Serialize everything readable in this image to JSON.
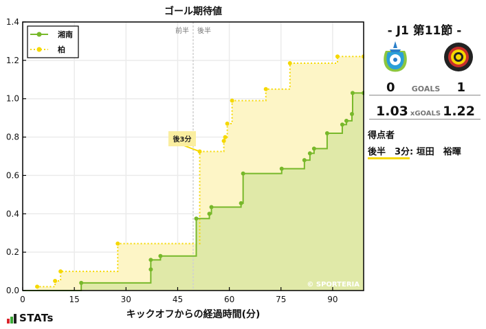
{
  "chart": {
    "title": "ゴール期待値",
    "xlabel": "キックオフからの経過時間(分)",
    "half_labels": {
      "first": "前半",
      "second": "後半"
    },
    "annotation": "後3分",
    "watermark": "© SPORTERIA",
    "legend": [
      {
        "name": "湘南",
        "color": "#77b82a",
        "style": "solid"
      },
      {
        "name": "柏",
        "color": "#f5d800",
        "style": "dotted"
      }
    ]
  },
  "chart_data": {
    "type": "line",
    "step": true,
    "title": "ゴール期待値",
    "xlabel": "キックオフからの経過時間(分)",
    "ylabel": "",
    "xlim": [
      0,
      99
    ],
    "ylim": [
      0.0,
      1.4
    ],
    "xticks": [
      0,
      15,
      30,
      45,
      60,
      75,
      90
    ],
    "yticks": [
      0.0,
      0.2,
      0.4,
      0.6,
      0.8,
      1.0,
      1.2,
      1.4
    ],
    "grid": true,
    "legend_position": "upper left",
    "halftime_line_x": 49.5,
    "annotations": [
      {
        "text": "後3分",
        "x": 51.4,
        "y": 0.725
      }
    ],
    "series": [
      {
        "name": "湘南",
        "color": "#77b82a",
        "points": [
          [
            17,
            0.04
          ],
          [
            37.2,
            0.11
          ],
          [
            37.2,
            0.16
          ],
          [
            40,
            0.18
          ],
          [
            50.4,
            0.375
          ],
          [
            54.2,
            0.4
          ],
          [
            54.8,
            0.435
          ],
          [
            63.4,
            0.455
          ],
          [
            64,
            0.61
          ],
          [
            75.2,
            0.635
          ],
          [
            81.8,
            0.68
          ],
          [
            83.4,
            0.715
          ],
          [
            84.6,
            0.74
          ],
          [
            88.4,
            0.82
          ],
          [
            92.8,
            0.865
          ],
          [
            94,
            0.885
          ],
          [
            95.6,
            0.92
          ],
          [
            95.8,
            1.03
          ]
        ],
        "final": 1.03
      },
      {
        "name": "柏",
        "color": "#f5d800",
        "points": [
          [
            4.2,
            0.02
          ],
          [
            9.4,
            0.05
          ],
          [
            11,
            0.1
          ],
          [
            27.6,
            0.245
          ],
          [
            51.4,
            0.725
          ],
          [
            58.4,
            0.78
          ],
          [
            58.8,
            0.8
          ],
          [
            59.4,
            0.87
          ],
          [
            60.8,
            0.99
          ],
          [
            70.6,
            1.05
          ],
          [
            77.6,
            1.185
          ],
          [
            91.4,
            1.22
          ]
        ],
        "final": 1.22
      }
    ]
  },
  "match": {
    "round": "- J1 第11節 -",
    "home": {
      "name": "湘南",
      "goals": "0",
      "xg": "1.03"
    },
    "away": {
      "name": "柏",
      "goals": "1",
      "xg": "1.22"
    },
    "goals_label": "GOALS",
    "xgoals_label": "xGOALS",
    "scorers_title": "得点者",
    "scorers": [
      {
        "time": "後半　3分",
        "name": "垣田　裕暉"
      }
    ]
  },
  "brand": {
    "stats_label": "STATs"
  }
}
